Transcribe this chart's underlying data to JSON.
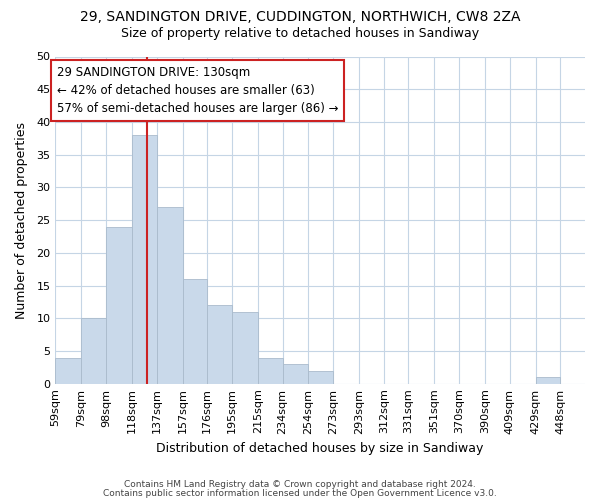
{
  "title1": "29, SANDINGTON DRIVE, CUDDINGTON, NORTHWICH, CW8 2ZA",
  "title2": "Size of property relative to detached houses in Sandiway",
  "xlabel": "Distribution of detached houses by size in Sandiway",
  "ylabel": "Number of detached properties",
  "footnote1": "Contains HM Land Registry data © Crown copyright and database right 2024.",
  "footnote2": "Contains public sector information licensed under the Open Government Licence v3.0.",
  "annotation_title": "29 SANDINGTON DRIVE: 130sqm",
  "annotation_line1": "← 42% of detached houses are smaller (63)",
  "annotation_line2": "57% of semi-detached houses are larger (86) →",
  "bar_color": "#c9d9ea",
  "bar_edgecolor": "#aabbcc",
  "vline_color": "#cc2222",
  "vline_x": 130,
  "categories": [
    "59sqm",
    "79sqm",
    "98sqm",
    "118sqm",
    "137sqm",
    "157sqm",
    "176sqm",
    "195sqm",
    "215sqm",
    "234sqm",
    "254sqm",
    "273sqm",
    "293sqm",
    "312sqm",
    "331sqm",
    "351sqm",
    "370sqm",
    "390sqm",
    "409sqm",
    "429sqm",
    "448sqm"
  ],
  "bin_left": [
    59,
    79,
    98,
    118,
    137,
    157,
    176,
    195,
    215,
    234,
    254,
    273,
    293,
    312,
    331,
    351,
    370,
    390,
    409,
    429,
    448
  ],
  "bin_right": [
    79,
    98,
    118,
    137,
    157,
    176,
    195,
    215,
    234,
    254,
    273,
    293,
    312,
    331,
    351,
    370,
    390,
    409,
    429,
    448,
    467
  ],
  "values": [
    4,
    10,
    24,
    38,
    27,
    16,
    12,
    11,
    4,
    3,
    2,
    0,
    0,
    0,
    0,
    0,
    0,
    0,
    0,
    1,
    0
  ],
  "ylim": [
    0,
    50
  ],
  "yticks": [
    0,
    5,
    10,
    15,
    20,
    25,
    30,
    35,
    40,
    45,
    50
  ],
  "background_color": "#ffffff",
  "grid_color": "#c5d5e5",
  "title1_fontsize": 10,
  "title2_fontsize": 9,
  "xlabel_fontsize": 9,
  "ylabel_fontsize": 9,
  "tick_fontsize": 8,
  "annot_fontsize": 8.5,
  "footnote_fontsize": 6.5
}
